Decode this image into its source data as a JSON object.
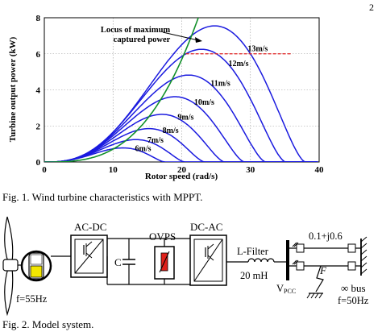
{
  "page_number": "2",
  "figure1": {
    "caption": "Fig. 1. Wind turbine characteristics with MPPT.",
    "locus_label_line1": "Locus of maximum",
    "locus_label_line2": "captured power",
    "chart_data": {
      "type": "line",
      "xlabel": "Rotor speed (rad/s)",
      "ylabel": "Turbine output power (kW)",
      "xlim": [
        0,
        40
      ],
      "ylim": [
        0,
        8
      ],
      "xticks": [
        0,
        10,
        20,
        30,
        40
      ],
      "yticks": [
        0,
        2,
        4,
        6,
        8
      ],
      "grid": true,
      "series": [
        {
          "name": "6m/s",
          "peak_x": 10.3,
          "peak_y": 0.78
        },
        {
          "name": "7m/s",
          "peak_x": 12.0,
          "peak_y": 1.24
        },
        {
          "name": "8m/s",
          "peak_x": 13.7,
          "peak_y": 1.85
        },
        {
          "name": "9m/s",
          "peak_x": 15.4,
          "peak_y": 2.64
        },
        {
          "name": "10m/s",
          "peak_x": 17.1,
          "peak_y": 3.62
        },
        {
          "name": "11m/s",
          "peak_x": 18.9,
          "peak_y": 4.82
        },
        {
          "name": "12m/s",
          "peak_x": 20.6,
          "peak_y": 6.25
        },
        {
          "name": "13m/s",
          "peak_x": 22.3,
          "peak_y": 7.55
        }
      ],
      "rated_power_line": {
        "y": 6.0,
        "x_start": 20.6,
        "x_end": 36.0
      },
      "mppt_locus": {
        "coefficient": 0.000711,
        "exponent": 3
      }
    }
  },
  "figure2": {
    "caption": "Fig. 2. Model system.",
    "acdc_label": "AC-DC",
    "dcac_label": "DC-AC",
    "ovps_label": "OVPS",
    "cap_label": "C",
    "filter_label": "L-Filter",
    "filter_value": "20 mH",
    "line_impedance": "0.1+j0.6",
    "fault_label": "F",
    "bus_label": "∞ bus",
    "grid_freq": "f=50Hz",
    "gen_freq": "f=55Hz",
    "vpcc_main": "V",
    "vpcc_sub": "PCC"
  }
}
